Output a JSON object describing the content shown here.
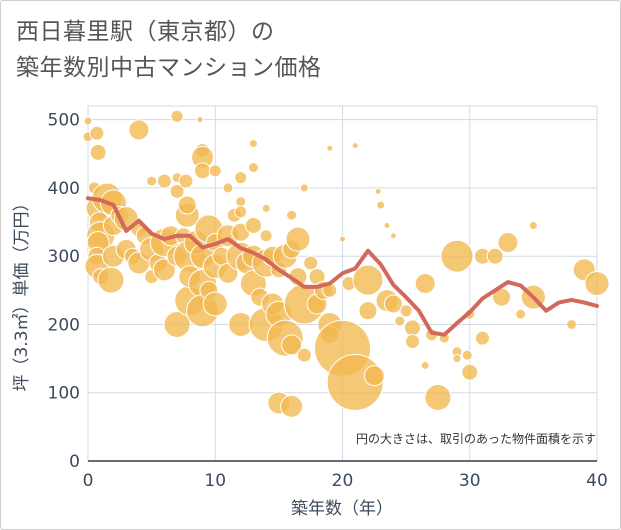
{
  "title_lines": [
    "西日暮里駅（東京都）の",
    "築年数別中古マンション価格"
  ],
  "colors": {
    "bubble": "#f2b94f",
    "bubble_edge": "#ffffff",
    "line": "#d2695a",
    "grid": "#d3dae6",
    "text": "#3d4a5c"
  },
  "chart_data": {
    "type": "scatter",
    "title": "西日暮里駅（東京都）の 築年数別中古マンション価格",
    "xlabel": "築年数（年）",
    "ylabel": "坪（3.3㎡）単価（万円）",
    "xlim": [
      0,
      40
    ],
    "ylim": [
      0,
      520
    ],
    "x_ticks": [
      0,
      10,
      20,
      30,
      40
    ],
    "y_ticks": [
      0,
      100,
      200,
      300,
      400,
      500
    ],
    "grid": true,
    "annotation": "円の大きさは、取引のあった物件面積を示す",
    "bubbles": [
      {
        "x": 0,
        "y": 498,
        "s": 4
      },
      {
        "x": 0,
        "y": 475,
        "s": 5
      },
      {
        "x": 0.7,
        "y": 480,
        "s": 7
      },
      {
        "x": 0.8,
        "y": 452,
        "s": 8
      },
      {
        "x": 0.5,
        "y": 400,
        "s": 6
      },
      {
        "x": 0.8,
        "y": 370,
        "s": 12
      },
      {
        "x": 0.9,
        "y": 350,
        "s": 10
      },
      {
        "x": 1.0,
        "y": 330,
        "s": 14
      },
      {
        "x": 0.8,
        "y": 320,
        "s": 11
      },
      {
        "x": 0.7,
        "y": 300,
        "s": 9
      },
      {
        "x": 0.7,
        "y": 285,
        "s": 12
      },
      {
        "x": 1.0,
        "y": 270,
        "s": 8
      },
      {
        "x": 1.5,
        "y": 385,
        "s": 15
      },
      {
        "x": 2,
        "y": 378,
        "s": 13
      },
      {
        "x": 2,
        "y": 345,
        "s": 10
      },
      {
        "x": 2,
        "y": 300,
        "s": 11
      },
      {
        "x": 1.8,
        "y": 265,
        "s": 13
      },
      {
        "x": 2.5,
        "y": 360,
        "s": 9
      },
      {
        "x": 3,
        "y": 355,
        "s": 12
      },
      {
        "x": 3,
        "y": 310,
        "s": 10
      },
      {
        "x": 3.5,
        "y": 300,
        "s": 8
      },
      {
        "x": 4,
        "y": 485,
        "s": 10
      },
      {
        "x": 4,
        "y": 340,
        "s": 8
      },
      {
        "x": 4,
        "y": 290,
        "s": 11
      },
      {
        "x": 4.5,
        "y": 330,
        "s": 9
      },
      {
        "x": 5,
        "y": 310,
        "s": 12
      },
      {
        "x": 5,
        "y": 270,
        "s": 7
      },
      {
        "x": 5,
        "y": 410,
        "s": 5
      },
      {
        "x": 5.5,
        "y": 290,
        "s": 9
      },
      {
        "x": 6,
        "y": 410,
        "s": 7
      },
      {
        "x": 6,
        "y": 320,
        "s": 14
      },
      {
        "x": 6,
        "y": 280,
        "s": 11
      },
      {
        "x": 6.5,
        "y": 330,
        "s": 10
      },
      {
        "x": 7,
        "y": 505,
        "s": 6
      },
      {
        "x": 7,
        "y": 415,
        "s": 5
      },
      {
        "x": 7,
        "y": 395,
        "s": 7
      },
      {
        "x": 7,
        "y": 300,
        "s": 10
      },
      {
        "x": 7,
        "y": 200,
        "s": 13
      },
      {
        "x": 7.5,
        "y": 330,
        "s": 8
      },
      {
        "x": 7.7,
        "y": 410,
        "s": 7
      },
      {
        "x": 7.8,
        "y": 360,
        "s": 12
      },
      {
        "x": 7.8,
        "y": 375,
        "s": 9
      },
      {
        "x": 8,
        "y": 300,
        "s": 16
      },
      {
        "x": 8,
        "y": 235,
        "s": 15
      },
      {
        "x": 8,
        "y": 270,
        "s": 11
      },
      {
        "x": 8.5,
        "y": 320,
        "s": 12
      },
      {
        "x": 8.8,
        "y": 500,
        "s": 3
      },
      {
        "x": 9,
        "y": 455,
        "s": 7
      },
      {
        "x": 9,
        "y": 445,
        "s": 11
      },
      {
        "x": 9,
        "y": 425,
        "s": 8
      },
      {
        "x": 9,
        "y": 300,
        "s": 12
      },
      {
        "x": 9,
        "y": 260,
        "s": 14
      },
      {
        "x": 9,
        "y": 220,
        "s": 16
      },
      {
        "x": 9.5,
        "y": 340,
        "s": 14
      },
      {
        "x": 9.5,
        "y": 250,
        "s": 9
      },
      {
        "x": 10,
        "y": 425,
        "s": 6
      },
      {
        "x": 10,
        "y": 285,
        "s": 12
      },
      {
        "x": 10,
        "y": 320,
        "s": 9
      },
      {
        "x": 10,
        "y": 230,
        "s": 12
      },
      {
        "x": 10.5,
        "y": 300,
        "s": 9
      },
      {
        "x": 11,
        "y": 400,
        "s": 5
      },
      {
        "x": 11,
        "y": 330,
        "s": 11
      },
      {
        "x": 11,
        "y": 275,
        "s": 10
      },
      {
        "x": 11.5,
        "y": 360,
        "s": 7
      },
      {
        "x": 12,
        "y": 415,
        "s": 6
      },
      {
        "x": 12,
        "y": 380,
        "s": 5
      },
      {
        "x": 12,
        "y": 365,
        "s": 6
      },
      {
        "x": 12,
        "y": 335,
        "s": 9
      },
      {
        "x": 12,
        "y": 300,
        "s": 14
      },
      {
        "x": 12,
        "y": 200,
        "s": 12
      },
      {
        "x": 12.5,
        "y": 290,
        "s": 11
      },
      {
        "x": 13,
        "y": 465,
        "s": 4
      },
      {
        "x": 13,
        "y": 430,
        "s": 5
      },
      {
        "x": 13,
        "y": 345,
        "s": 8
      },
      {
        "x": 13,
        "y": 300,
        "s": 11
      },
      {
        "x": 13,
        "y": 260,
        "s": 13
      },
      {
        "x": 13.5,
        "y": 240,
        "s": 9
      },
      {
        "x": 14,
        "y": 370,
        "s": 4
      },
      {
        "x": 14,
        "y": 330,
        "s": 6
      },
      {
        "x": 14,
        "y": 290,
        "s": 14
      },
      {
        "x": 14,
        "y": 200,
        "s": 17
      },
      {
        "x": 14.5,
        "y": 300,
        "s": 10
      },
      {
        "x": 14.5,
        "y": 230,
        "s": 11
      },
      {
        "x": 15,
        "y": 280,
        "s": 8
      },
      {
        "x": 15,
        "y": 215,
        "s": 13
      },
      {
        "x": 15,
        "y": 85,
        "s": 11
      },
      {
        "x": 15.5,
        "y": 300,
        "s": 12
      },
      {
        "x": 15.5,
        "y": 180,
        "s": 18
      },
      {
        "x": 16,
        "y": 360,
        "s": 5
      },
      {
        "x": 16,
        "y": 310,
        "s": 9
      },
      {
        "x": 16,
        "y": 80,
        "s": 11
      },
      {
        "x": 16,
        "y": 170,
        "s": 10
      },
      {
        "x": 16.5,
        "y": 325,
        "s": 12
      },
      {
        "x": 16.5,
        "y": 270,
        "s": 9
      },
      {
        "x": 17,
        "y": 400,
        "s": 4
      },
      {
        "x": 17,
        "y": 230,
        "s": 20
      },
      {
        "x": 17,
        "y": 155,
        "s": 7
      },
      {
        "x": 17.5,
        "y": 290,
        "s": 7
      },
      {
        "x": 18,
        "y": 270,
        "s": 8
      },
      {
        "x": 18,
        "y": 230,
        "s": 10
      },
      {
        "x": 18.5,
        "y": 250,
        "s": 9
      },
      {
        "x": 19,
        "y": 458,
        "s": 3
      },
      {
        "x": 19,
        "y": 200,
        "s": 12
      },
      {
        "x": 19,
        "y": 185,
        "s": 9
      },
      {
        "x": 19,
        "y": 250,
        "s": 7
      },
      {
        "x": 20,
        "y": 325,
        "s": 3
      },
      {
        "x": 20,
        "y": 165,
        "s": 28
      },
      {
        "x": 20.5,
        "y": 260,
        "s": 7
      },
      {
        "x": 21,
        "y": 462,
        "s": 3
      },
      {
        "x": 21,
        "y": 115,
        "s": 28
      },
      {
        "x": 22,
        "y": 265,
        "s": 15
      },
      {
        "x": 22,
        "y": 220,
        "s": 9
      },
      {
        "x": 22.5,
        "y": 125,
        "s": 10
      },
      {
        "x": 22.8,
        "y": 395,
        "s": 3
      },
      {
        "x": 23,
        "y": 375,
        "s": 4
      },
      {
        "x": 23.5,
        "y": 345,
        "s": 3
      },
      {
        "x": 23.5,
        "y": 235,
        "s": 11
      },
      {
        "x": 24,
        "y": 330,
        "s": 3
      },
      {
        "x": 24,
        "y": 230,
        "s": 9
      },
      {
        "x": 24.5,
        "y": 205,
        "s": 5
      },
      {
        "x": 25,
        "y": 220,
        "s": 6
      },
      {
        "x": 25.5,
        "y": 195,
        "s": 8
      },
      {
        "x": 25.5,
        "y": 175,
        "s": 7
      },
      {
        "x": 26.5,
        "y": 260,
        "s": 10
      },
      {
        "x": 26.5,
        "y": 140,
        "s": 4
      },
      {
        "x": 27,
        "y": 185,
        "s": 6
      },
      {
        "x": 27.5,
        "y": 93,
        "s": 13
      },
      {
        "x": 28,
        "y": 180,
        "s": 5
      },
      {
        "x": 29,
        "y": 300,
        "s": 16
      },
      {
        "x": 29,
        "y": 160,
        "s": 5
      },
      {
        "x": 29,
        "y": 150,
        "s": 4
      },
      {
        "x": 29.8,
        "y": 155,
        "s": 5
      },
      {
        "x": 30,
        "y": 130,
        "s": 8
      },
      {
        "x": 30,
        "y": 215,
        "s": 5
      },
      {
        "x": 31,
        "y": 300,
        "s": 8
      },
      {
        "x": 31,
        "y": 180,
        "s": 7
      },
      {
        "x": 32,
        "y": 300,
        "s": 8
      },
      {
        "x": 32.5,
        "y": 240,
        "s": 9
      },
      {
        "x": 33,
        "y": 320,
        "s": 10
      },
      {
        "x": 34,
        "y": 215,
        "s": 5
      },
      {
        "x": 35,
        "y": 345,
        "s": 4
      },
      {
        "x": 35,
        "y": 240,
        "s": 12
      },
      {
        "x": 38,
        "y": 200,
        "s": 5
      },
      {
        "x": 39,
        "y": 280,
        "s": 11
      },
      {
        "x": 40,
        "y": 260,
        "s": 12
      }
    ],
    "series": [
      {
        "x": [
          0,
          1,
          2,
          3,
          4,
          5,
          6,
          7,
          8,
          9,
          10,
          11,
          12,
          13,
          14,
          15,
          16,
          17,
          18,
          19,
          20,
          21,
          22,
          23,
          24,
          25,
          26,
          27,
          28,
          29,
          30,
          31,
          32,
          33,
          34,
          35,
          36,
          37,
          38,
          39,
          40
        ],
        "values": [
          385,
          382,
          375,
          337,
          352,
          333,
          325,
          330,
          330,
          313,
          318,
          325,
          312,
          305,
          295,
          280,
          268,
          255,
          255,
          260,
          275,
          282,
          308,
          288,
          258,
          240,
          220,
          188,
          185,
          202,
          218,
          238,
          250,
          262,
          257,
          240,
          220,
          232,
          236,
          232,
          227
        ]
      }
    ]
  }
}
